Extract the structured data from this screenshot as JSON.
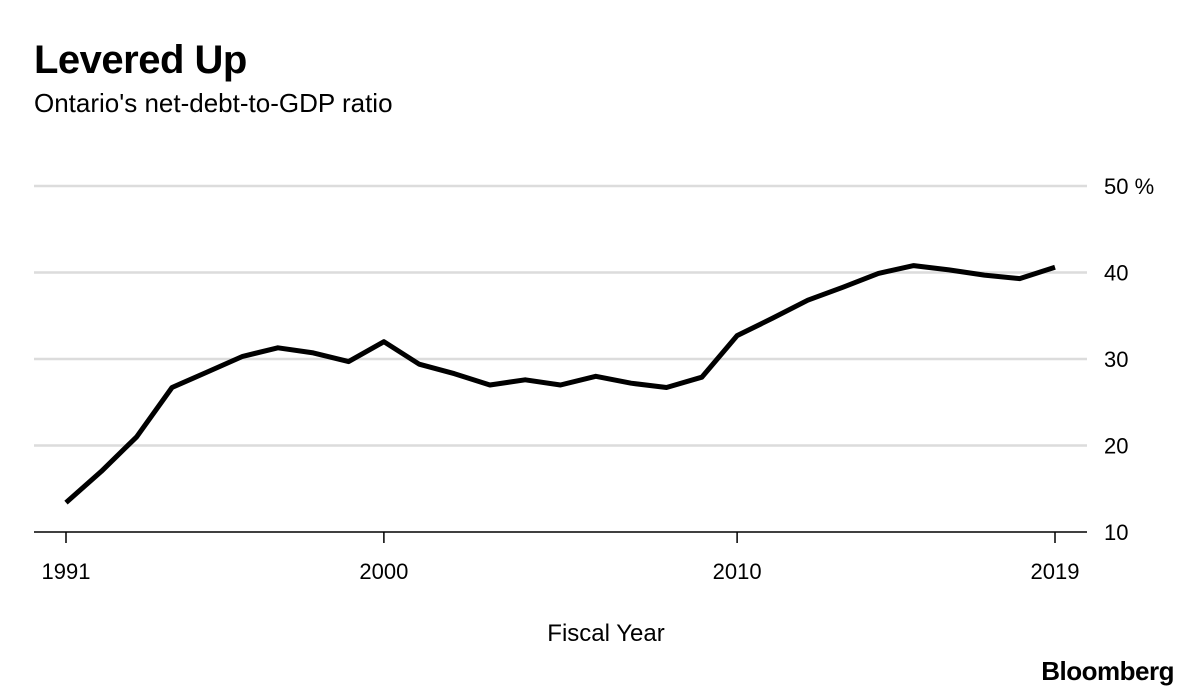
{
  "header": {
    "title": "Levered Up",
    "subtitle": "Ontario's net-debt-to-GDP ratio"
  },
  "footer": {
    "source_logo": "Bloomberg"
  },
  "chart_data": {
    "type": "line",
    "title": "Levered Up",
    "subtitle": "Ontario's net-debt-to-GDP ratio",
    "xlabel": "Fiscal Year",
    "ylabel": "",
    "y_unit": "%",
    "xlim": [
      1991,
      2019
    ],
    "ylim": [
      10,
      50
    ],
    "x_ticks": [
      1991,
      2000,
      2010,
      2019
    ],
    "x_tick_labels": [
      "1991",
      "2000",
      "2010",
      "2019"
    ],
    "y_ticks": [
      10,
      20,
      30,
      40,
      50
    ],
    "y_tick_labels": [
      "10",
      "20",
      "30",
      "40",
      "50 %"
    ],
    "y_axis_side": "right",
    "grid": true,
    "line_color": "#000000",
    "grid_color": "#dcdcdc",
    "series": [
      {
        "name": "Net debt to GDP",
        "x": [
          1991,
          1992,
          1993,
          1994,
          1995,
          1996,
          1997,
          1998,
          1999,
          2000,
          2001,
          2002,
          2003,
          2004,
          2005,
          2006,
          2007,
          2008,
          2009,
          2010,
          2011,
          2012,
          2013,
          2014,
          2015,
          2016,
          2017,
          2018,
          2019
        ],
        "values": [
          13.4,
          17.0,
          21.0,
          26.7,
          28.5,
          30.3,
          31.3,
          30.7,
          29.7,
          32.0,
          29.4,
          28.3,
          27.0,
          27.6,
          27.0,
          28.0,
          27.2,
          26.7,
          27.9,
          32.7,
          34.7,
          36.8,
          38.3,
          39.9,
          40.8,
          40.3,
          39.7,
          39.3,
          40.6
        ]
      }
    ]
  }
}
